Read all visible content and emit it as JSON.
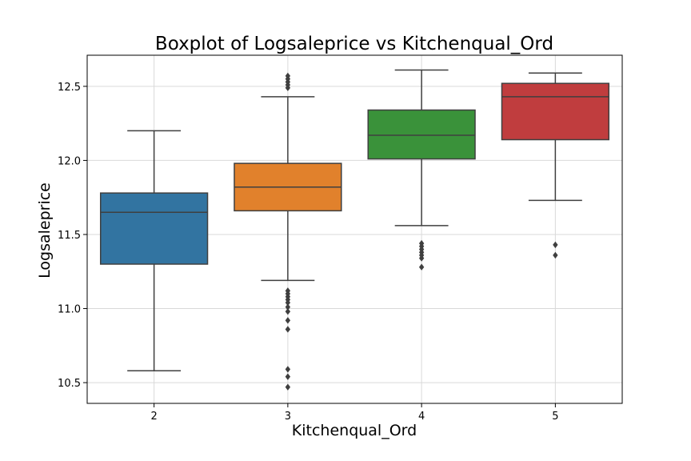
{
  "chart_data": {
    "type": "box",
    "title": "Boxplot of Logsaleprice vs Kitchenqual_Ord",
    "xlabel": "Kitchenqual_Ord",
    "ylabel": "Logsaleprice",
    "categories": [
      "2",
      "3",
      "4",
      "5"
    ],
    "ylim": [
      10.36,
      12.71
    ],
    "yticks": [
      10.5,
      11.0,
      11.5,
      12.0,
      12.5
    ],
    "ytick_labels": [
      "10.5",
      "11.0",
      "11.5",
      "12.0",
      "12.5"
    ],
    "grid": true,
    "boxes": [
      {
        "category": "2",
        "color": "#3274a1",
        "whisker_low": 10.58,
        "q1": 11.3,
        "median": 11.65,
        "q3": 11.78,
        "whisker_high": 12.2,
        "outliers": []
      },
      {
        "category": "3",
        "color": "#e1812c",
        "whisker_low": 11.19,
        "q1": 11.66,
        "median": 11.82,
        "q3": 11.98,
        "whisker_high": 12.43,
        "outliers": [
          12.57,
          12.55,
          12.53,
          12.51,
          12.49,
          11.12,
          11.1,
          11.08,
          11.06,
          11.04,
          11.01,
          10.98,
          10.92,
          10.86,
          10.59,
          10.54,
          10.47
        ]
      },
      {
        "category": "4",
        "color": "#3a923a",
        "whisker_low": 11.56,
        "q1": 12.01,
        "median": 12.17,
        "q3": 12.34,
        "whisker_high": 12.61,
        "outliers": [
          11.44,
          11.42,
          11.4,
          11.38,
          11.36,
          11.34,
          11.28
        ]
      },
      {
        "category": "5",
        "color": "#c03d3e",
        "whisker_low": 11.73,
        "q1": 12.14,
        "median": 12.43,
        "q3": 12.52,
        "whisker_high": 12.59,
        "outliers": [
          11.43,
          11.36
        ]
      }
    ]
  }
}
